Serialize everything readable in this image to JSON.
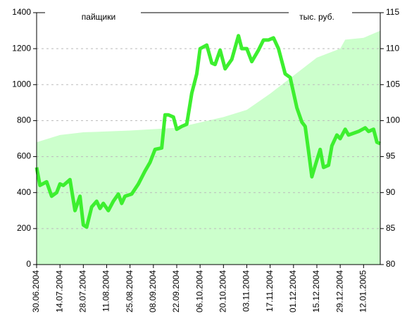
{
  "chart_data": {
    "type": "line",
    "ylabel": "пайщики",
    "y2label": "тыс. руб.",
    "xlim": [
      "30.06.2004",
      "22.01.2005"
    ],
    "xticks": [
      "30.06.2004",
      "14.07.2004",
      "28.07.2004",
      "11.08.2004",
      "25.08.2004",
      "08.09.2004",
      "22.09.2004",
      "06.10.2004",
      "20.10.2004",
      "03.11.2004",
      "17.11.2004",
      "01.12.2004",
      "15.12.2004",
      "29.12.2004",
      "12.01.2005"
    ],
    "ylim": [
      0,
      1400
    ],
    "yticks": [
      0,
      200,
      400,
      600,
      800,
      1000,
      1200,
      1400
    ],
    "y2lim": [
      80,
      115
    ],
    "y2ticks": [
      80,
      85,
      90,
      95,
      100,
      105,
      110,
      115
    ],
    "grid": true,
    "series": [
      {
        "type": "area",
        "color": "#ccffcc",
        "x": [
          "30.06.2004",
          "14.07.2004",
          "28.07.2004",
          "25.08.2004",
          "22.09.2004",
          "06.10.2004",
          "20.10.2004",
          "03.11.2004",
          "17.11.2004",
          "01.12.2004",
          "15.12.2004",
          "29.12.2004",
          "01.01.2005",
          "12.01.2005",
          "22.01.2005"
        ],
        "values": [
          680,
          720,
          735,
          745,
          760,
          790,
          820,
          860,
          950,
          1050,
          1150,
          1200,
          1250,
          1260,
          1300
        ]
      },
      {
        "type": "line",
        "color": "#3def2f",
        "axis": "y2",
        "x": [
          "30.06.2004",
          "02.07.2004",
          "06.07.2004",
          "09.07.2004",
          "12.07.2004",
          "14.07.2004",
          "16.07.2004",
          "20.07.2004",
          "23.07.2004",
          "26.07.2004",
          "28.07.2004",
          "30.07.2004",
          "02.08.2004",
          "05.08.2004",
          "07.08.2004",
          "09.08.2004",
          "12.08.2004",
          "15.08.2004",
          "18.08.2004",
          "20.08.2004",
          "22.08.2004",
          "26.08.2004",
          "30.08.2004",
          "03.09.2004",
          "06.09.2004",
          "09.09.2004",
          "13.09.2004",
          "15.09.2004",
          "17.09.2004",
          "20.09.2004",
          "22.09.2004",
          "25.09.2004",
          "28.09.2004",
          "01.10.2004",
          "04.10.2004",
          "06.10.2004",
          "10.10.2004",
          "13.10.2004",
          "15.10.2004",
          "18.10.2004",
          "21.10.2004",
          "25.10.2004",
          "29.10.2004",
          "31.10.2004",
          "03.11.2004",
          "06.11.2004",
          "10.11.2004",
          "13.11.2004",
          "16.11.2004",
          "19.11.2004",
          "22.11.2004",
          "26.11.2004",
          "29.11.2004",
          "03.12.2004",
          "06.12.2004",
          "08.12.2004",
          "10.12.2004",
          "12.12.2004",
          "15.12.2004",
          "17.12.2004",
          "19.12.2004",
          "22.12.2004",
          "24.12.2004",
          "27.12.2004",
          "29.12.2004",
          "01.01.2005",
          "03.01.2005",
          "09.01.2005",
          "13.01.2005",
          "15.01.2005",
          "18.01.2005",
          "20.01.2005",
          "22.01.2005"
        ],
        "values": [
          93.5,
          91,
          91.5,
          89.5,
          90,
          91.2,
          91,
          91.8,
          87.5,
          89.5,
          85.5,
          85.2,
          88,
          88.8,
          87.8,
          88.5,
          87.5,
          88.8,
          89.8,
          88.5,
          89.5,
          89.8,
          91.2,
          93,
          94.2,
          96,
          96.2,
          100.8,
          100.8,
          100.5,
          98.8,
          99.2,
          99.5,
          103.8,
          106.5,
          110,
          110.5,
          108,
          107.8,
          109.8,
          107.2,
          108.5,
          111.8,
          110,
          110,
          108.2,
          109.8,
          111.2,
          111.2,
          111.5,
          110,
          106.5,
          106,
          101.8,
          99.8,
          99.2,
          95.8,
          92.2,
          94.5,
          96,
          93.5,
          93.8,
          96.5,
          98,
          97.5,
          98.8,
          98,
          98.5,
          99,
          98.5,
          98.8,
          97,
          96.8
        ]
      }
    ]
  }
}
